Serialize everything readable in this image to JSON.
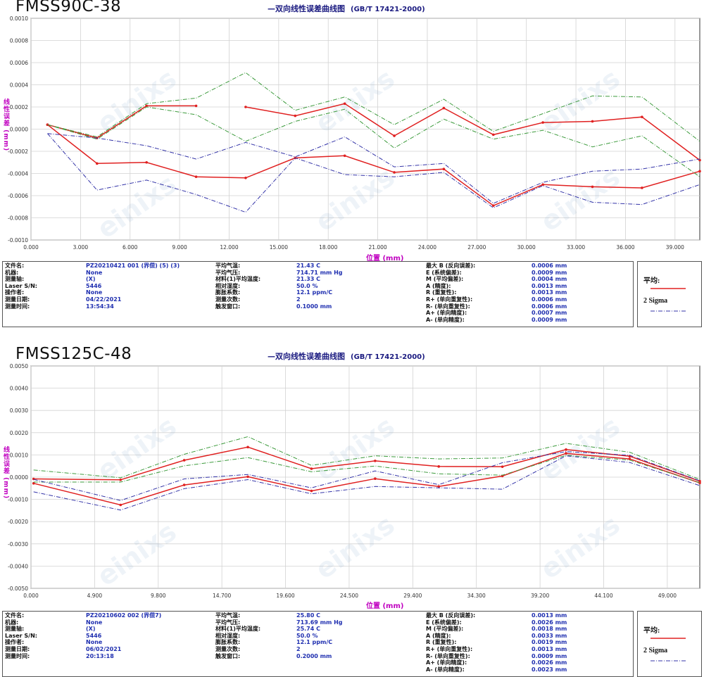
{
  "charts": [
    {
      "model": "FMSS90C-38",
      "subtitle": "—双向线性误差曲线图",
      "standard": "(GB/T 17421-2000)",
      "ylabel": "线性误差 (mm)",
      "xlabel": "位置 (mm)",
      "info": {
        "col1": [
          [
            "文件名:",
            "PZ20210421 001 (界偿) (5) (3)"
          ],
          [
            "机器:",
            "None"
          ],
          [
            "测量轴:",
            "(X)"
          ],
          [
            "Laser S/N:",
            "5446"
          ],
          [
            "操作者:",
            "None"
          ],
          [
            "测量日期:",
            "04/22/2021"
          ],
          [
            "测量时间:",
            "13:54:34"
          ]
        ],
        "col2": [
          [
            "平均气温:",
            "21.43 C"
          ],
          [
            "平均气压:",
            "714.71 mm Hg"
          ],
          [
            "材料(1)平均温度:",
            "21.33 C"
          ],
          [
            "相对湿度:",
            "50.0 %"
          ],
          [
            "膨胀系数:",
            "12.1 ppm/C"
          ],
          [
            "测量次数:",
            "2"
          ],
          [
            "触发窗口:",
            "0.1000 mm"
          ]
        ],
        "col3": [
          [
            "最大 B (反向误差):",
            "0.0006 mm"
          ],
          [
            "E (系统偏差):",
            "0.0009 mm"
          ],
          [
            "M (平均偏差):",
            "0.0004 mm"
          ],
          [
            "A (精度):",
            "0.0013 mm"
          ],
          [
            "R (重复性):",
            "0.0013 mm"
          ],
          [
            "R+ (单向重复性):",
            "0.0006 mm"
          ],
          [
            "R- (单向重复性):",
            "0.0006 mm"
          ],
          [
            "A+ (单向精度):",
            "0.0007 mm"
          ],
          [
            "A- (单向精度):",
            "0.0009 mm"
          ]
        ]
      },
      "legend": {
        "mean": "平均:",
        "sigma": "2 Sigma"
      }
    },
    {
      "model": "FMSS125C-48",
      "subtitle": "—双向线性误差曲线图",
      "standard": "(GB/T 17421-2000)",
      "ylabel": "线性误差 (mm)",
      "xlabel": "位置 (mm)",
      "info": {
        "col1": [
          [
            "文件名:",
            "PZ20210602 002 (界偿7)"
          ],
          [
            "机器:",
            "None"
          ],
          [
            "测量轴:",
            "(X)"
          ],
          [
            "Laser S/N:",
            "5446"
          ],
          [
            "操作者:",
            "None"
          ],
          [
            "测量日期:",
            "06/02/2021"
          ],
          [
            "测量时间:",
            "20:13:18"
          ]
        ],
        "col2": [
          [
            "平均气温:",
            "25.80 C"
          ],
          [
            "平均气压:",
            "713.69 mm Hg"
          ],
          [
            "材料(1)平均温度:",
            "25.74 C"
          ],
          [
            "相对湿度:",
            "50.0 %"
          ],
          [
            "膨胀系数:",
            "12.1 ppm/C"
          ],
          [
            "测量次数:",
            "2"
          ],
          [
            "触发窗口:",
            "0.2000 mm"
          ]
        ],
        "col3": [
          [
            "最大 B (反向误差):",
            "0.0013 mm"
          ],
          [
            "E (系统偏差):",
            "0.0026 mm"
          ],
          [
            "M (平均偏差):",
            "0.0018 mm"
          ],
          [
            "A (精度):",
            "0.0033 mm"
          ],
          [
            "R (重复性):",
            "0.0019 mm"
          ],
          [
            "R+ (单向重复性):",
            "0.0013 mm"
          ],
          [
            "R- (单向重复性):",
            "0.0009 mm"
          ],
          [
            "A+ (单向精度):",
            "0.0026 mm"
          ],
          [
            "A- (单向精度):",
            "0.0023 mm"
          ]
        ]
      },
      "legend": {
        "mean": "平均:",
        "sigma": "2 Sigma"
      }
    }
  ],
  "chart_data": [
    {
      "type": "line",
      "title": "—双向线性误差曲线图 (GB/T 17421-2000)",
      "xlabel": "位置 (mm)",
      "ylabel": "线性误差 (mm)",
      "xlim": [
        0,
        40.5
      ],
      "ylim": [
        -0.001,
        0.001
      ],
      "xticks": [
        "0.000",
        "3.000",
        "6.000",
        "9.000",
        "12.000",
        "15.000",
        "18.000",
        "21.000",
        "24.000",
        "27.000",
        "30.000",
        "33.000",
        "36.000",
        "39.000"
      ],
      "xtick_values": [
        0,
        3,
        6,
        9,
        12,
        15,
        18,
        21,
        24,
        27,
        30,
        33,
        36,
        39
      ],
      "yticks": [
        "0.0010",
        "0.0008",
        "0.0006",
        "0.0004",
        "0.0002",
        "0.0000",
        "-0.0002",
        "-0.0004",
        "-0.0006",
        "-0.0008",
        "-0.0010"
      ],
      "ytick_values": [
        0.001,
        0.0008,
        0.0006,
        0.0004,
        0.0002,
        0,
        -0.0002,
        -0.0004,
        -0.0006,
        -0.0008,
        -0.001
      ],
      "grid": true,
      "legend_position": "right of info table",
      "series": [
        {
          "role": "mean",
          "color": "#e02020",
          "style": "solid",
          "x": [
            1,
            4,
            7,
            10,
            13,
            16,
            19,
            22,
            25,
            28,
            31,
            34,
            37,
            40.5
          ],
          "y": [
            4e-05,
            -8e-05,
            0.00021,
            0.00021,
            0.0002,
            0.00012,
            0.00023,
            -6e-05,
            0.00019,
            -5e-05,
            6e-05,
            7e-05,
            0.00011,
            -0.00028
          ],
          "gap_after_index": 3
        },
        {
          "role": "mean",
          "color": "#e02020",
          "style": "solid",
          "x": [
            1,
            4,
            7,
            10,
            13,
            16,
            19,
            22,
            25,
            28,
            31,
            34,
            37,
            40.5
          ],
          "y": [
            4e-05,
            -0.00031,
            -0.0003,
            -0.00043,
            -0.00044,
            -0.00026,
            -0.00024,
            -0.00039,
            -0.00036,
            -0.00069,
            -0.0005,
            -0.00052,
            -0.00053,
            -0.00038
          ]
        },
        {
          "role": "2sigma",
          "color": "#3d9b3d",
          "style": "dashdot",
          "x": [
            1,
            4,
            7,
            10,
            13,
            16,
            19,
            22,
            25,
            28,
            31,
            34,
            37,
            40.5
          ],
          "y": [
            4e-05,
            -7e-05,
            0.00023,
            0.00028,
            0.00051,
            0.00017,
            0.00029,
            4e-05,
            0.00027,
            -2e-05,
            0.00014,
            0.0003,
            0.00029,
            -0.00011
          ]
        },
        {
          "role": "2sigma",
          "color": "#3d9b3d",
          "style": "dashdot",
          "x": [
            1,
            4,
            7,
            10,
            13,
            16,
            19,
            22,
            25,
            28,
            31,
            34,
            37,
            40.5
          ],
          "y": [
            4e-05,
            -9e-05,
            0.0002,
            0.00013,
            -0.00011,
            7e-05,
            0.00018,
            -0.00017,
            9e-05,
            -9e-05,
            -1e-05,
            -0.00016,
            -6e-05,
            -0.00043
          ]
        },
        {
          "role": "2sigma",
          "color": "#3434a8",
          "style": "dashdot",
          "x": [
            1,
            4,
            7,
            10,
            13,
            16,
            19,
            22,
            25,
            28,
            31,
            34,
            37,
            40.5
          ],
          "y": [
            -4e-05,
            -8e-05,
            -0.00015,
            -0.00027,
            -0.00012,
            -0.00025,
            -7e-05,
            -0.00034,
            -0.00031,
            -0.00067,
            -0.00048,
            -0.00038,
            -0.00036,
            -0.00027
          ]
        },
        {
          "role": "2sigma",
          "color": "#3434a8",
          "style": "dashdot",
          "x": [
            1,
            4,
            7,
            10,
            13,
            16,
            19,
            22,
            25,
            28,
            31,
            34,
            37,
            40.5
          ],
          "y": [
            -4e-05,
            -0.00055,
            -0.00046,
            -0.00059,
            -0.00075,
            -0.00026,
            -0.00041,
            -0.00043,
            -0.00039,
            -0.00071,
            -0.00051,
            -0.00066,
            -0.00068,
            -0.0005
          ]
        }
      ]
    },
    {
      "type": "line",
      "title": "—双向线性误差曲线图 (GB/T 17421-2000)",
      "xlabel": "位置 (mm)",
      "ylabel": "线性误差 (mm)",
      "xlim": [
        0,
        51.5
      ],
      "ylim": [
        -0.005,
        0.005
      ],
      "xticks": [
        "0.000",
        "4.900",
        "9.800",
        "14.700",
        "19.600",
        "24.500",
        "29.400",
        "34.300",
        "39.200",
        "44.100",
        "49.000"
      ],
      "xtick_values": [
        0,
        4.9,
        9.8,
        14.7,
        19.6,
        24.5,
        29.4,
        34.3,
        39.2,
        44.1,
        49.0
      ],
      "yticks": [
        "0.0050",
        "0.0040",
        "0.0030",
        "0.0020",
        "0.0010",
        "0.0000",
        "-0.0010",
        "-0.0020",
        "-0.0030",
        "-0.0040",
        "-0.0050"
      ],
      "ytick_values": [
        0.005,
        0.004,
        0.003,
        0.002,
        0.001,
        0,
        -0.001,
        -0.002,
        -0.003,
        -0.004,
        -0.005
      ],
      "grid": true,
      "legend_position": "right of info table",
      "series": [
        {
          "role": "mean",
          "color": "#e02020",
          "style": "solid",
          "x": [
            0.2,
            6.9,
            11.8,
            16.7,
            21.6,
            26.5,
            31.4,
            36.3,
            41.2,
            46.1,
            51.5
          ],
          "y": [
            -8e-05,
            -0.00012,
            0.00076,
            0.00135,
            0.00038,
            0.00073,
            0.00048,
            0.00047,
            0.00124,
            0.00094,
            -0.00018
          ]
        },
        {
          "role": "mean",
          "color": "#e02020",
          "style": "solid",
          "x": [
            0.2,
            6.9,
            11.8,
            16.7,
            21.6,
            26.5,
            31.4,
            36.3,
            41.2,
            46.1,
            51.5
          ],
          "y": [
            -0.00028,
            -0.00125,
            -0.00035,
            2e-05,
            -0.00062,
            -7e-05,
            -0.00042,
            5e-05,
            0.00107,
            0.00082,
            -0.00026
          ]
        },
        {
          "role": "2sigma",
          "color": "#3d9b3d",
          "style": "dashdot",
          "x": [
            0.2,
            6.9,
            11.8,
            16.7,
            21.6,
            26.5,
            31.4,
            36.3,
            41.2,
            46.1,
            51.5
          ],
          "y": [
            0.00032,
            -3e-05,
            0.00103,
            0.00182,
            0.00053,
            0.00096,
            0.00082,
            0.00086,
            0.00152,
            0.00112,
            -0.0001
          ]
        },
        {
          "role": "2sigma",
          "color": "#3d9b3d",
          "style": "dashdot",
          "x": [
            0.2,
            6.9,
            11.8,
            16.7,
            21.6,
            26.5,
            31.4,
            36.3,
            41.2,
            46.1,
            51.5
          ],
          "y": [
            -0.00022,
            -0.00022,
            0.00051,
            0.00088,
            0.00024,
            0.0005,
            0.00015,
            9e-05,
            0.00098,
            0.00077,
            -0.00025
          ]
        },
        {
          "role": "2sigma",
          "color": "#3434a8",
          "style": "dashdot",
          "x": [
            0.2,
            6.9,
            11.8,
            16.7,
            21.6,
            26.5,
            31.4,
            36.3,
            41.2,
            46.1,
            51.5
          ],
          "y": [
            -0.0001,
            -0.00105,
            -8e-05,
            0.00012,
            -0.00048,
            0.00028,
            -0.00034,
            0.00065,
            0.00115,
            0.00098,
            -0.00016
          ]
        },
        {
          "role": "2sigma",
          "color": "#3434a8",
          "style": "dashdot",
          "x": [
            0.2,
            6.9,
            11.8,
            16.7,
            21.6,
            26.5,
            31.4,
            36.3,
            41.2,
            46.1,
            51.5
          ],
          "y": [
            -0.00066,
            -0.00148,
            -0.00052,
            -0.00011,
            -0.00075,
            -0.00042,
            -0.00048,
            -0.00054,
            0.00096,
            0.00066,
            -0.00038
          ]
        }
      ]
    }
  ]
}
